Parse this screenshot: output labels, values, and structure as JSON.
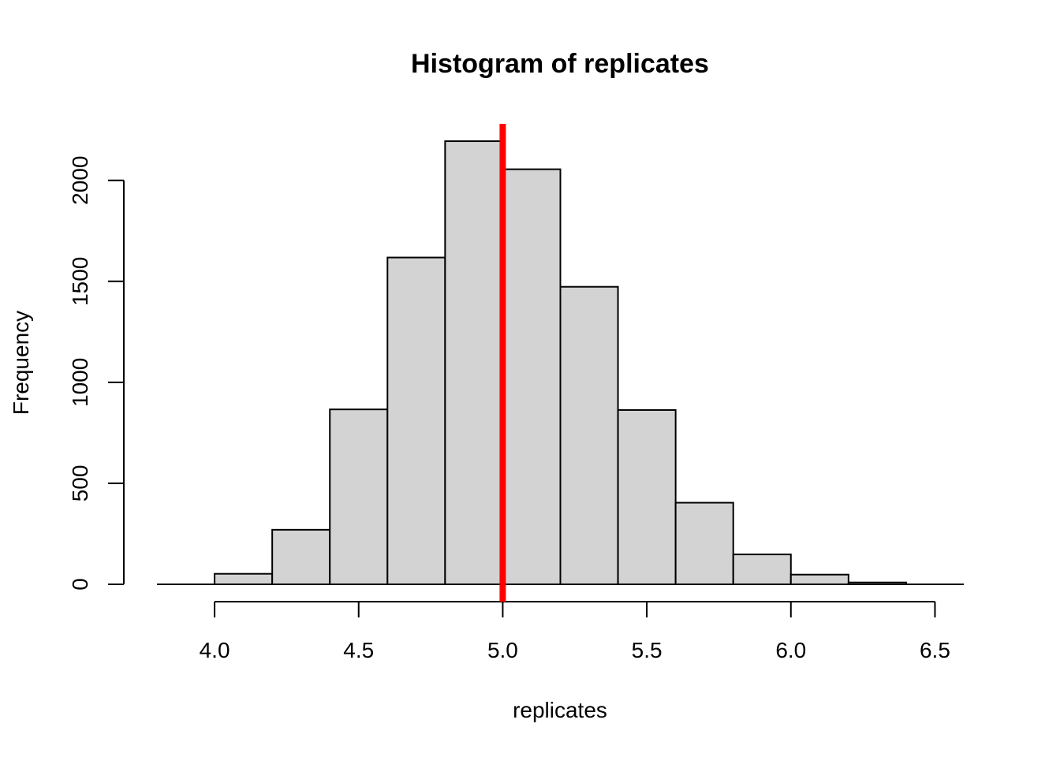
{
  "chart_data": {
    "type": "bar",
    "title": "Histogram of replicates",
    "xlabel": "replicates",
    "ylabel": "Frequency",
    "bins": [
      {
        "start": 4.0,
        "end": 4.2,
        "value": 52
      },
      {
        "start": 4.2,
        "end": 4.4,
        "value": 270
      },
      {
        "start": 4.4,
        "end": 4.6,
        "value": 866
      },
      {
        "start": 4.6,
        "end": 4.8,
        "value": 1618
      },
      {
        "start": 4.8,
        "end": 5.0,
        "value": 2194
      },
      {
        "start": 5.0,
        "end": 5.2,
        "value": 2055
      },
      {
        "start": 5.2,
        "end": 5.4,
        "value": 1473
      },
      {
        "start": 5.4,
        "end": 5.6,
        "value": 863
      },
      {
        "start": 5.6,
        "end": 5.8,
        "value": 404
      },
      {
        "start": 5.8,
        "end": 6.0,
        "value": 148
      },
      {
        "start": 6.0,
        "end": 6.2,
        "value": 48
      },
      {
        "start": 6.2,
        "end": 6.4,
        "value": 9
      }
    ],
    "xlim": [
      3.8,
      6.6
    ],
    "ylim": [
      0,
      2280
    ],
    "x_ticks": [
      "4.0",
      "4.5",
      "5.0",
      "5.5",
      "6.0",
      "6.5"
    ],
    "y_ticks": [
      "0",
      "500",
      "1000",
      "1500",
      "2000"
    ],
    "reference_line": {
      "x": 5.0,
      "color": "#ff0000"
    },
    "bar_fill": "#d3d3d3",
    "bar_stroke": "#000000",
    "grid": false
  }
}
